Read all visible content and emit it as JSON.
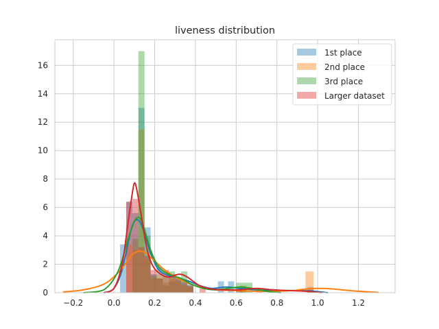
{
  "chart_data": {
    "type": "histogram",
    "title": "liveness distribution",
    "xlabel": "",
    "ylabel": "",
    "xlim": [
      -0.29,
      1.38
    ],
    "ylim": [
      0,
      17.8
    ],
    "xticks": [
      -0.2,
      0.0,
      0.2,
      0.4,
      0.6,
      0.8,
      1.0,
      1.2
    ],
    "xtick_labels": [
      "−0.2",
      "0.0",
      "0.2",
      "0.4",
      "0.6",
      "0.8",
      "1.0",
      "1.2"
    ],
    "yticks": [
      0,
      2,
      4,
      6,
      8,
      10,
      12,
      14,
      16
    ],
    "ytick_labels": [
      "0",
      "2",
      "4",
      "6",
      "8",
      "10",
      "12",
      "14",
      "16"
    ],
    "grid": true,
    "legend_position": "upper right",
    "series": [
      {
        "name": "1st place",
        "color": "#1f77b4",
        "bins": [
          [
            0.03,
            0.06,
            3.4
          ],
          [
            0.06,
            0.09,
            6.4
          ],
          [
            0.09,
            0.12,
            5.6
          ],
          [
            0.12,
            0.15,
            13.0
          ],
          [
            0.15,
            0.18,
            4.6
          ],
          [
            0.18,
            0.21,
            1.3
          ],
          [
            0.21,
            0.24,
            1.8
          ],
          [
            0.24,
            0.27,
            0.5
          ],
          [
            0.27,
            0.3,
            0.8
          ],
          [
            0.3,
            0.33,
            1.0
          ],
          [
            0.33,
            0.36,
            0.8
          ],
          [
            0.36,
            0.39,
            0.6
          ],
          [
            0.51,
            0.54,
            0.8
          ],
          [
            0.56,
            0.59,
            0.8
          ],
          [
            0.62,
            0.65,
            0.4
          ],
          [
            0.95,
            0.98,
            0.4
          ]
        ],
        "kde": [
          [
            -0.05,
            0
          ],
          [
            0.0,
            0.3
          ],
          [
            0.04,
            1.6
          ],
          [
            0.08,
            4.2
          ],
          [
            0.1,
            5.0
          ],
          [
            0.12,
            5.1
          ],
          [
            0.14,
            4.6
          ],
          [
            0.18,
            2.8
          ],
          [
            0.22,
            1.6
          ],
          [
            0.27,
            1.2
          ],
          [
            0.32,
            1.0
          ],
          [
            0.37,
            0.8
          ],
          [
            0.42,
            0.5
          ],
          [
            0.48,
            0.3
          ],
          [
            0.55,
            0.4
          ],
          [
            0.62,
            0.3
          ],
          [
            0.7,
            0.2
          ],
          [
            0.8,
            0.15
          ],
          [
            0.9,
            0.15
          ],
          [
            0.98,
            0.1
          ],
          [
            1.05,
            0
          ]
        ]
      },
      {
        "name": "2nd place",
        "color": "#ff7f0e",
        "bins": [
          [
            0.06,
            0.09,
            3.4
          ],
          [
            0.09,
            0.12,
            3.0
          ],
          [
            0.12,
            0.15,
            11.5
          ],
          [
            0.15,
            0.18,
            2.4
          ],
          [
            0.18,
            0.21,
            1.0
          ],
          [
            0.21,
            0.24,
            1.3
          ],
          [
            0.24,
            0.27,
            0.7
          ],
          [
            0.27,
            0.3,
            1.0
          ],
          [
            0.3,
            0.33,
            0.8
          ],
          [
            0.33,
            0.36,
            0.5
          ],
          [
            0.36,
            0.39,
            0.4
          ],
          [
            0.62,
            0.65,
            0.5
          ],
          [
            0.94,
            0.98,
            1.5
          ]
        ],
        "kde": [
          [
            -0.25,
            0.05
          ],
          [
            -0.15,
            0.2
          ],
          [
            -0.05,
            0.6
          ],
          [
            0.02,
            1.4
          ],
          [
            0.07,
            2.3
          ],
          [
            0.1,
            2.8
          ],
          [
            0.14,
            2.9
          ],
          [
            0.18,
            2.5
          ],
          [
            0.24,
            1.7
          ],
          [
            0.3,
            1.1
          ],
          [
            0.36,
            0.7
          ],
          [
            0.42,
            0.4
          ],
          [
            0.5,
            0.2
          ],
          [
            0.6,
            0.15
          ],
          [
            0.7,
            0.1
          ],
          [
            0.8,
            0.1
          ],
          [
            0.88,
            0.15
          ],
          [
            0.94,
            0.25
          ],
          [
            1.0,
            0.3
          ],
          [
            1.06,
            0.28
          ],
          [
            1.12,
            0.2
          ],
          [
            1.2,
            0.1
          ],
          [
            1.3,
            0.02
          ]
        ]
      },
      {
        "name": "3rd place",
        "color": "#2ca02c",
        "bins": [
          [
            0.09,
            0.12,
            3.8
          ],
          [
            0.12,
            0.15,
            17.0
          ],
          [
            0.15,
            0.18,
            4.0
          ],
          [
            0.18,
            0.21,
            1.2
          ],
          [
            0.21,
            0.24,
            1.0
          ],
          [
            0.24,
            0.27,
            1.2
          ],
          [
            0.27,
            0.3,
            1.5
          ],
          [
            0.3,
            0.33,
            1.0
          ],
          [
            0.33,
            0.36,
            1.5
          ],
          [
            0.36,
            0.39,
            0.5
          ],
          [
            0.6,
            0.62,
            0.7
          ],
          [
            0.62,
            0.65,
            0.7
          ],
          [
            0.65,
            0.68,
            0.7
          ]
        ],
        "kde": [
          [
            -0.15,
            0
          ],
          [
            -0.05,
            0.2
          ],
          [
            0.02,
            1.5
          ],
          [
            0.07,
            3.8
          ],
          [
            0.1,
            5.0
          ],
          [
            0.12,
            5.3
          ],
          [
            0.14,
            4.9
          ],
          [
            0.18,
            3.0
          ],
          [
            0.22,
            1.8
          ],
          [
            0.27,
            1.3
          ],
          [
            0.33,
            1.0
          ],
          [
            0.38,
            0.6
          ],
          [
            0.44,
            0.3
          ],
          [
            0.5,
            0.2
          ],
          [
            0.56,
            0.3
          ],
          [
            0.62,
            0.4
          ],
          [
            0.68,
            0.3
          ],
          [
            0.75,
            0.1
          ],
          [
            0.82,
            0
          ]
        ]
      },
      {
        "name": "Larger dataset",
        "color": "#d62728",
        "bins": [
          [
            0.06,
            0.09,
            6.4
          ],
          [
            0.09,
            0.12,
            6.6
          ],
          [
            0.12,
            0.15,
            3.2
          ],
          [
            0.15,
            0.18,
            2.6
          ],
          [
            0.18,
            0.21,
            1.6
          ],
          [
            0.21,
            0.24,
            1.0
          ],
          [
            0.24,
            0.27,
            1.6
          ],
          [
            0.27,
            0.3,
            1.3
          ],
          [
            0.3,
            0.33,
            1.0
          ],
          [
            0.33,
            0.36,
            0.7
          ],
          [
            0.36,
            0.39,
            0.5
          ],
          [
            0.42,
            0.45,
            0.3
          ],
          [
            0.6,
            0.63,
            0.2
          ],
          [
            0.7,
            0.73,
            0.2
          ],
          [
            0.95,
            0.98,
            0.2
          ]
        ],
        "kde": [
          [
            -0.05,
            0
          ],
          [
            0.0,
            0.3
          ],
          [
            0.04,
            2.0
          ],
          [
            0.07,
            5.0
          ],
          [
            0.09,
            7.0
          ],
          [
            0.1,
            7.7
          ],
          [
            0.11,
            7.4
          ],
          [
            0.13,
            5.8
          ],
          [
            0.16,
            3.2
          ],
          [
            0.19,
            1.9
          ],
          [
            0.23,
            1.3
          ],
          [
            0.27,
            1.1
          ],
          [
            0.32,
            1.3
          ],
          [
            0.36,
            1.1
          ],
          [
            0.42,
            0.5
          ],
          [
            0.48,
            0.25
          ],
          [
            0.55,
            0.2
          ],
          [
            0.62,
            0.2
          ],
          [
            0.7,
            0.3
          ],
          [
            0.78,
            0.2
          ],
          [
            0.86,
            0.15
          ],
          [
            0.94,
            0.1
          ],
          [
            1.02,
            0
          ]
        ]
      }
    ]
  }
}
